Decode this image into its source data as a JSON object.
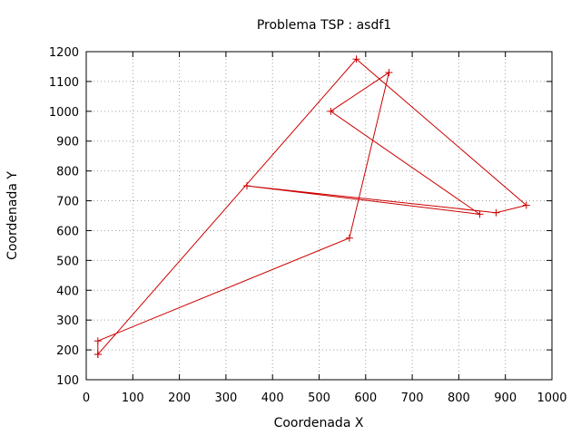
{
  "chart_data": {
    "type": "line",
    "title": "Problema TSP : asdf1",
    "xlabel": "Coordenada X",
    "ylabel": "Coordenada Y",
    "xlim": [
      0,
      1000
    ],
    "ylim": [
      100,
      1200
    ],
    "xticks": [
      0,
      100,
      200,
      300,
      400,
      500,
      600,
      700,
      800,
      900,
      1000
    ],
    "yticks": [
      100,
      200,
      300,
      400,
      500,
      600,
      700,
      800,
      900,
      1000,
      1100,
      1200
    ],
    "grid": true,
    "legend": "none",
    "marker": "plus",
    "color": "#cc0000",
    "series": [
      {
        "x": [
          25,
          580,
          945,
          880,
          345,
          845,
          525,
          650,
          565,
          25,
          25
        ],
        "y": [
          185,
          1175,
          685,
          660,
          750,
          655,
          1000,
          1130,
          575,
          230,
          185
        ]
      }
    ]
  }
}
